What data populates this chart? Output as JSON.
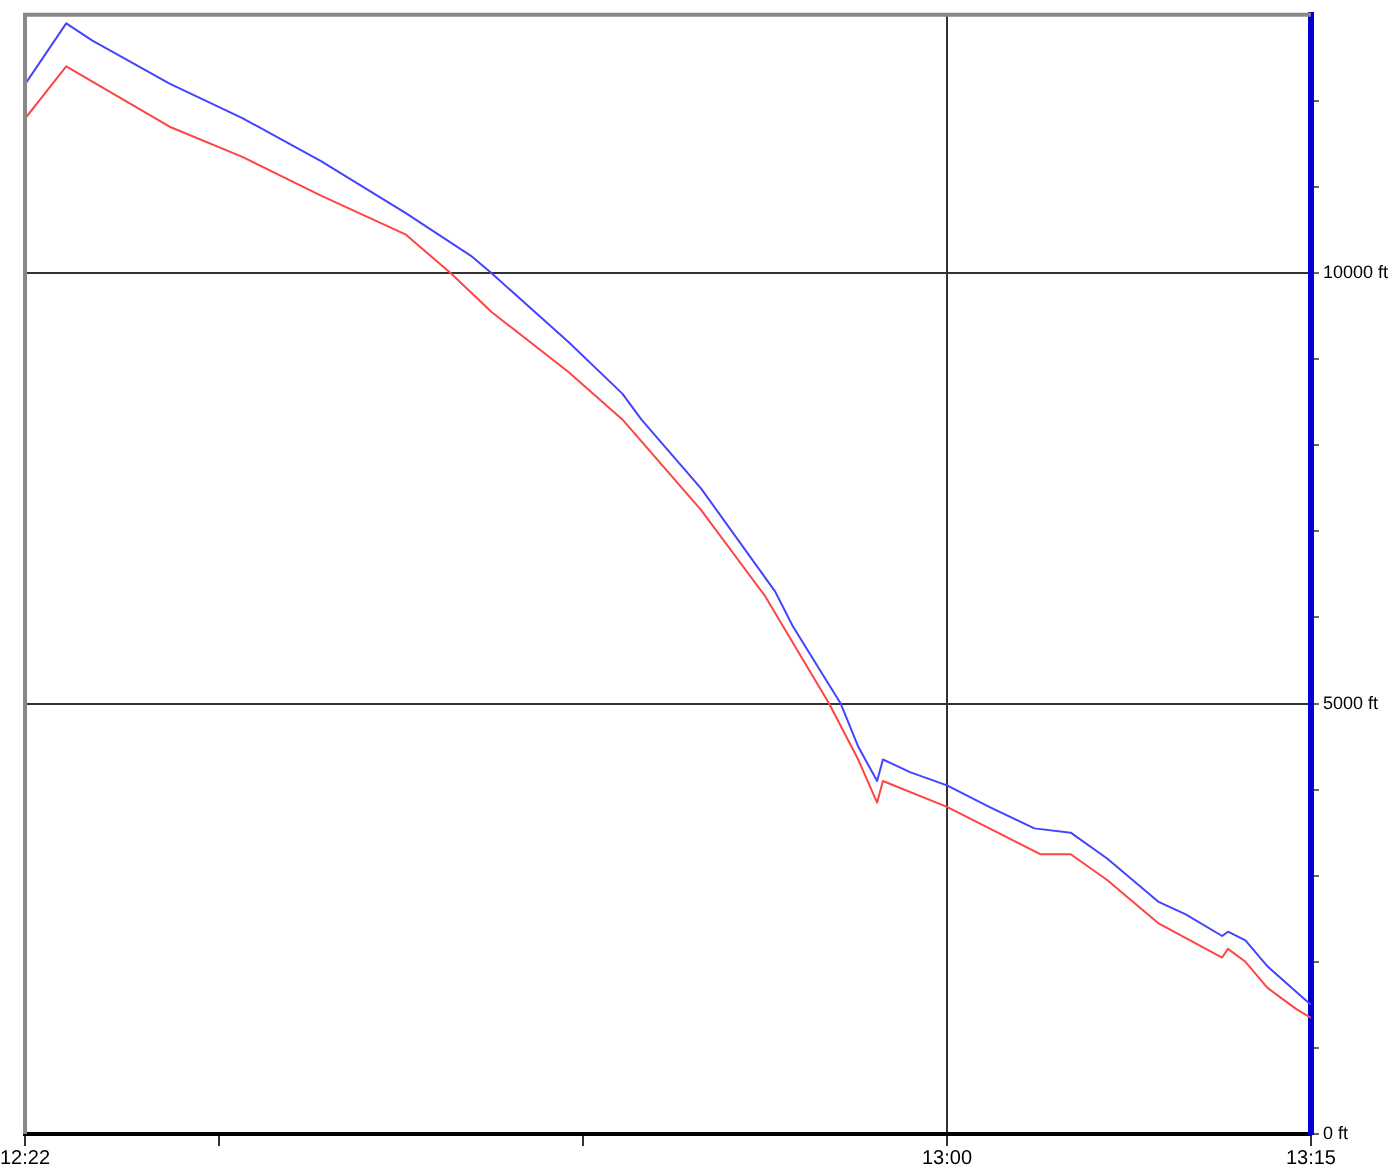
{
  "chart_data": {
    "type": "line",
    "xlim": [
      12.3667,
      13.25
    ],
    "xticks": [
      {
        "value": 12.3667,
        "label": "12:22"
      },
      {
        "value": 12.5,
        "label": null
      },
      {
        "value": 12.75,
        "label": null
      },
      {
        "value": 13,
        "label": "13:00"
      },
      {
        "value": 13.25,
        "label": "13:15"
      }
    ],
    "ylim": [
      0,
      13000
    ],
    "yticks": [
      {
        "value": 0,
        "label": "0 ft"
      },
      {
        "value": 1000,
        "label": null
      },
      {
        "value": 2000,
        "label": null
      },
      {
        "value": 3000,
        "label": null
      },
      {
        "value": 4000,
        "label": null
      },
      {
        "value": 5000,
        "label": "5000 ft"
      },
      {
        "value": 6000,
        "label": null
      },
      {
        "value": 7000,
        "label": null
      },
      {
        "value": 8000,
        "label": null
      },
      {
        "value": 9000,
        "label": null
      },
      {
        "value": 10000,
        "label": "10000 ft"
      },
      {
        "value": 11000,
        "label": null
      },
      {
        "value": 12000,
        "label": null
      }
    ],
    "grid": true,
    "legend": false,
    "marker": "none",
    "line_style": "solid",
    "series": [
      {
        "color": "#4444ff",
        "x": [
          12.367,
          12.395,
          12.413,
          12.466,
          12.516,
          12.57,
          12.628,
          12.673,
          12.687,
          12.74,
          12.777,
          12.79,
          12.831,
          12.882,
          12.894,
          12.916,
          12.927,
          12.939,
          12.952,
          12.956,
          12.975,
          13.0,
          13.029,
          13.06,
          13.085,
          13.11,
          13.145,
          13.164,
          13.189,
          13.193,
          13.205,
          13.22,
          13.24,
          13.25
        ],
        "values": [
          12200,
          12900,
          12700,
          12200,
          11800,
          11300,
          10700,
          10200,
          10000,
          9200,
          8600,
          8300,
          7500,
          6300,
          5900,
          5300,
          5000,
          4500,
          4100,
          4350,
          4200,
          4050,
          3800,
          3550,
          3500,
          3200,
          2700,
          2550,
          2300,
          2350,
          2250,
          1950,
          1650,
          1500
        ]
      },
      {
        "color": "#ff4444",
        "x": [
          12.367,
          12.395,
          12.466,
          12.516,
          12.57,
          12.628,
          12.659,
          12.687,
          12.74,
          12.777,
          12.831,
          12.875,
          12.919,
          12.939,
          12.952,
          12.956,
          13.0,
          13.064,
          13.085,
          13.11,
          13.145,
          13.189,
          13.193,
          13.205,
          13.22,
          13.24,
          13.25
        ],
        "values": [
          11800,
          12400,
          11700,
          11350,
          10900,
          10450,
          10000,
          9550,
          8850,
          8300,
          7250,
          6250,
          5000,
          4350,
          3850,
          4100,
          3800,
          3250,
          3250,
          2950,
          2450,
          2050,
          2150,
          2000,
          1700,
          1450,
          1350
        ]
      }
    ]
  }
}
